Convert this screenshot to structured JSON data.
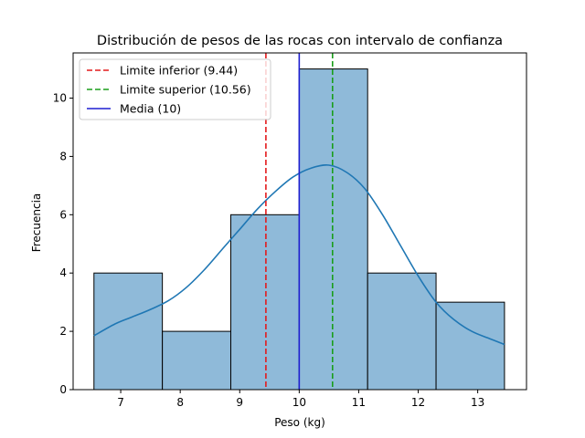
{
  "chart_data": {
    "type": "bar",
    "title": "Distribución de pesos de las rocas con intervalo de confianza",
    "xlabel": "Peso (kg)",
    "ylabel": "Frecuencia",
    "xlim": [
      6.2,
      13.82
    ],
    "ylim": [
      0,
      11.55
    ],
    "xticks": [
      7,
      8,
      9,
      10,
      11,
      12,
      13
    ],
    "yticks": [
      0,
      2,
      4,
      6,
      8,
      10
    ],
    "grid": false,
    "legend_position": "top-left",
    "bins": [
      {
        "start": 6.55,
        "end": 7.7,
        "count": 4
      },
      {
        "start": 7.7,
        "end": 8.85,
        "count": 2
      },
      {
        "start": 8.85,
        "end": 10.0,
        "count": 6
      },
      {
        "start": 10.0,
        "end": 11.15,
        "count": 11
      },
      {
        "start": 11.15,
        "end": 12.3,
        "count": 4
      },
      {
        "start": 12.3,
        "end": 13.45,
        "count": 3
      }
    ],
    "kde": {
      "x": [
        6.55,
        6.9,
        7.2,
        7.5,
        7.8,
        8.1,
        8.4,
        8.7,
        9.0,
        9.3,
        9.6,
        9.9,
        10.2,
        10.5,
        10.8,
        11.1,
        11.4,
        11.7,
        12.0,
        12.3,
        12.6,
        12.9,
        13.2,
        13.45
      ],
      "y": [
        1.85,
        2.25,
        2.5,
        2.75,
        3.05,
        3.5,
        4.1,
        4.8,
        5.5,
        6.2,
        6.8,
        7.3,
        7.6,
        7.7,
        7.45,
        6.9,
        6.0,
        4.95,
        3.9,
        3.0,
        2.4,
        2.0,
        1.75,
        1.55
      ]
    },
    "vlines": [
      {
        "x": 9.44,
        "label": "Limite inferior (9.44)",
        "color": "#e31a1c",
        "style": "dashed"
      },
      {
        "x": 10.56,
        "label": "Limite superior (10.56)",
        "color": "#1a9e1a",
        "style": "dashed"
      },
      {
        "x": 10,
        "label": "Media (10)",
        "color": "#1f1fd1",
        "style": "solid"
      }
    ],
    "colors": {
      "bar_fill": "#8fbad9",
      "bar_edge": "#000000",
      "kde_line": "#1f77b4"
    }
  }
}
